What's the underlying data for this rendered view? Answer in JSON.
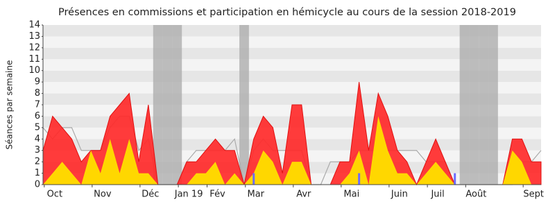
{
  "chart_data": {
    "type": "area",
    "title": "Présences en commissions et participation en hémicycle au cours de la session 2018-2019",
    "y_label": "Séances par semaine",
    "categories": [
      null,
      "Oct",
      null,
      null,
      null,
      null,
      "Nov",
      null,
      null,
      null,
      null,
      "Déc",
      null,
      null,
      null,
      "Jan 19",
      null,
      null,
      "Fév",
      null,
      null,
      null,
      "Mar",
      null,
      null,
      null,
      null,
      "Avr",
      null,
      null,
      null,
      null,
      "Mai",
      null,
      null,
      null,
      null,
      "Juin",
      null,
      null,
      null,
      "Juil",
      null,
      null,
      null,
      "Août",
      null,
      null,
      null,
      null,
      null,
      "Sept",
      null
    ],
    "series": [
      {
        "role": "median",
        "color": "#aaaaaa",
        "values": [
          5,
          4,
          5,
          5,
          3,
          3,
          3,
          5,
          6,
          6,
          3,
          4,
          0,
          0,
          0,
          2,
          3,
          3,
          3,
          3,
          4,
          0,
          3,
          4,
          3,
          3,
          3,
          3,
          0,
          0,
          2,
          2,
          2,
          3,
          3,
          3,
          3,
          3,
          3,
          3,
          2,
          2,
          2,
          0,
          0,
          0,
          0,
          0,
          0,
          0,
          2,
          2,
          3
        ]
      },
      {
        "role": "presence",
        "color": "#ff2a2a",
        "values": [
          3,
          6,
          5,
          4,
          2,
          3,
          3,
          6,
          7,
          8,
          2,
          7,
          0,
          0,
          0,
          2,
          2,
          3,
          4,
          3,
          3,
          0,
          4,
          6,
          5,
          1,
          7,
          7,
          0,
          0,
          0,
          2,
          2,
          9,
          3,
          8,
          6,
          3,
          2,
          0,
          2,
          4,
          2,
          0,
          0,
          0,
          0,
          0,
          0,
          4,
          4,
          2,
          2
        ]
      },
      {
        "role": "commission",
        "color": "#ffd700",
        "values": [
          0,
          1,
          2,
          1,
          0,
          3,
          1,
          4,
          1,
          4,
          1,
          1,
          0,
          0,
          0,
          0,
          1,
          1,
          2,
          0,
          1,
          0,
          1,
          3,
          2,
          0,
          2,
          2,
          0,
          0,
          0,
          0,
          1,
          3,
          0,
          6,
          3,
          1,
          1,
          0,
          1,
          2,
          1,
          0,
          0,
          0,
          0,
          0,
          0,
          3,
          2,
          0,
          0
        ]
      },
      {
        "role": "hemicycle",
        "color": "#6b6bff",
        "values": [
          0,
          0,
          0,
          0,
          0,
          0,
          0,
          0,
          0,
          0,
          0,
          0,
          0,
          0,
          0,
          0,
          0,
          0,
          0,
          0,
          0,
          0,
          1,
          0,
          0,
          0,
          0,
          0,
          0,
          0,
          0,
          0,
          0,
          1,
          0,
          0,
          0,
          0,
          0,
          0,
          0,
          0,
          0,
          1,
          0,
          0,
          0,
          0,
          0,
          0,
          0,
          0,
          0
        ]
      }
    ],
    "shaded_weeks": [
      12,
      13,
      14,
      21,
      44,
      45,
      46,
      47
    ],
    "shade_color": "#aaaaaa",
    "ylim": [
      0,
      14
    ],
    "yticks": [
      0,
      1,
      2,
      3,
      4,
      5,
      6,
      7,
      8,
      9,
      10,
      11,
      12,
      13,
      14
    ],
    "grid": true
  }
}
